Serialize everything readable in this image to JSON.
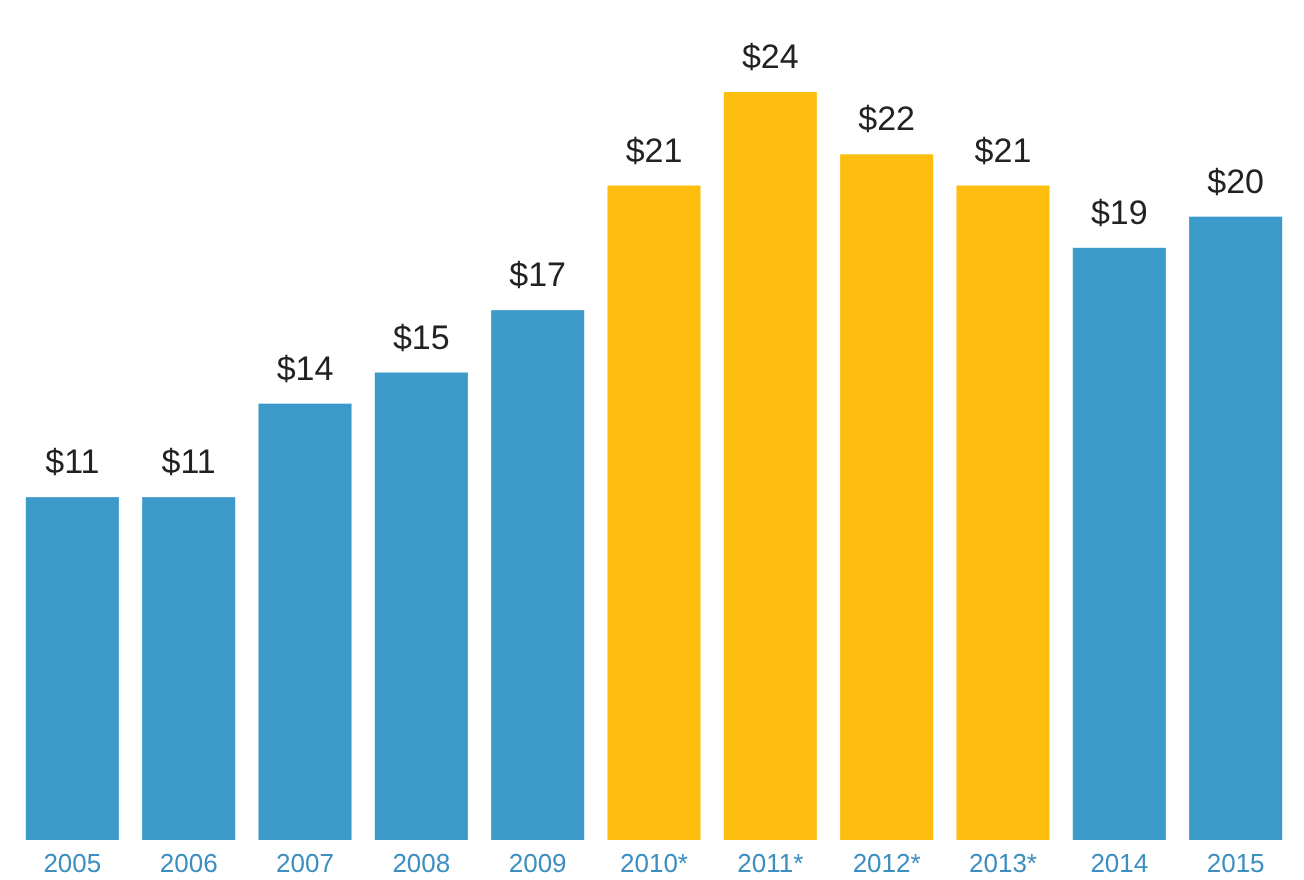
{
  "chart_data": {
    "type": "bar",
    "categories": [
      "2005",
      "2006",
      "2007",
      "2008",
      "2009",
      "2010*",
      "2011*",
      "2012*",
      "2013*",
      "2014",
      "2015"
    ],
    "values": [
      11,
      11,
      14,
      15,
      17,
      21,
      24,
      22,
      21,
      19,
      20
    ],
    "colors": [
      "#3c9acb",
      "#3c9acb",
      "#3c9acb",
      "#3c9acb",
      "#3c9acb",
      "#fdbe10",
      "#fdbe10",
      "#fdbe10",
      "#fdbe10",
      "#3c9acb",
      "#3c9acb"
    ],
    "value_labels": [
      "$11",
      "$11",
      "$14",
      "$15",
      "$17",
      "$21",
      "$24",
      "$22",
      "$21",
      "$19",
      "$20"
    ],
    "orientation": "vertical"
  }
}
